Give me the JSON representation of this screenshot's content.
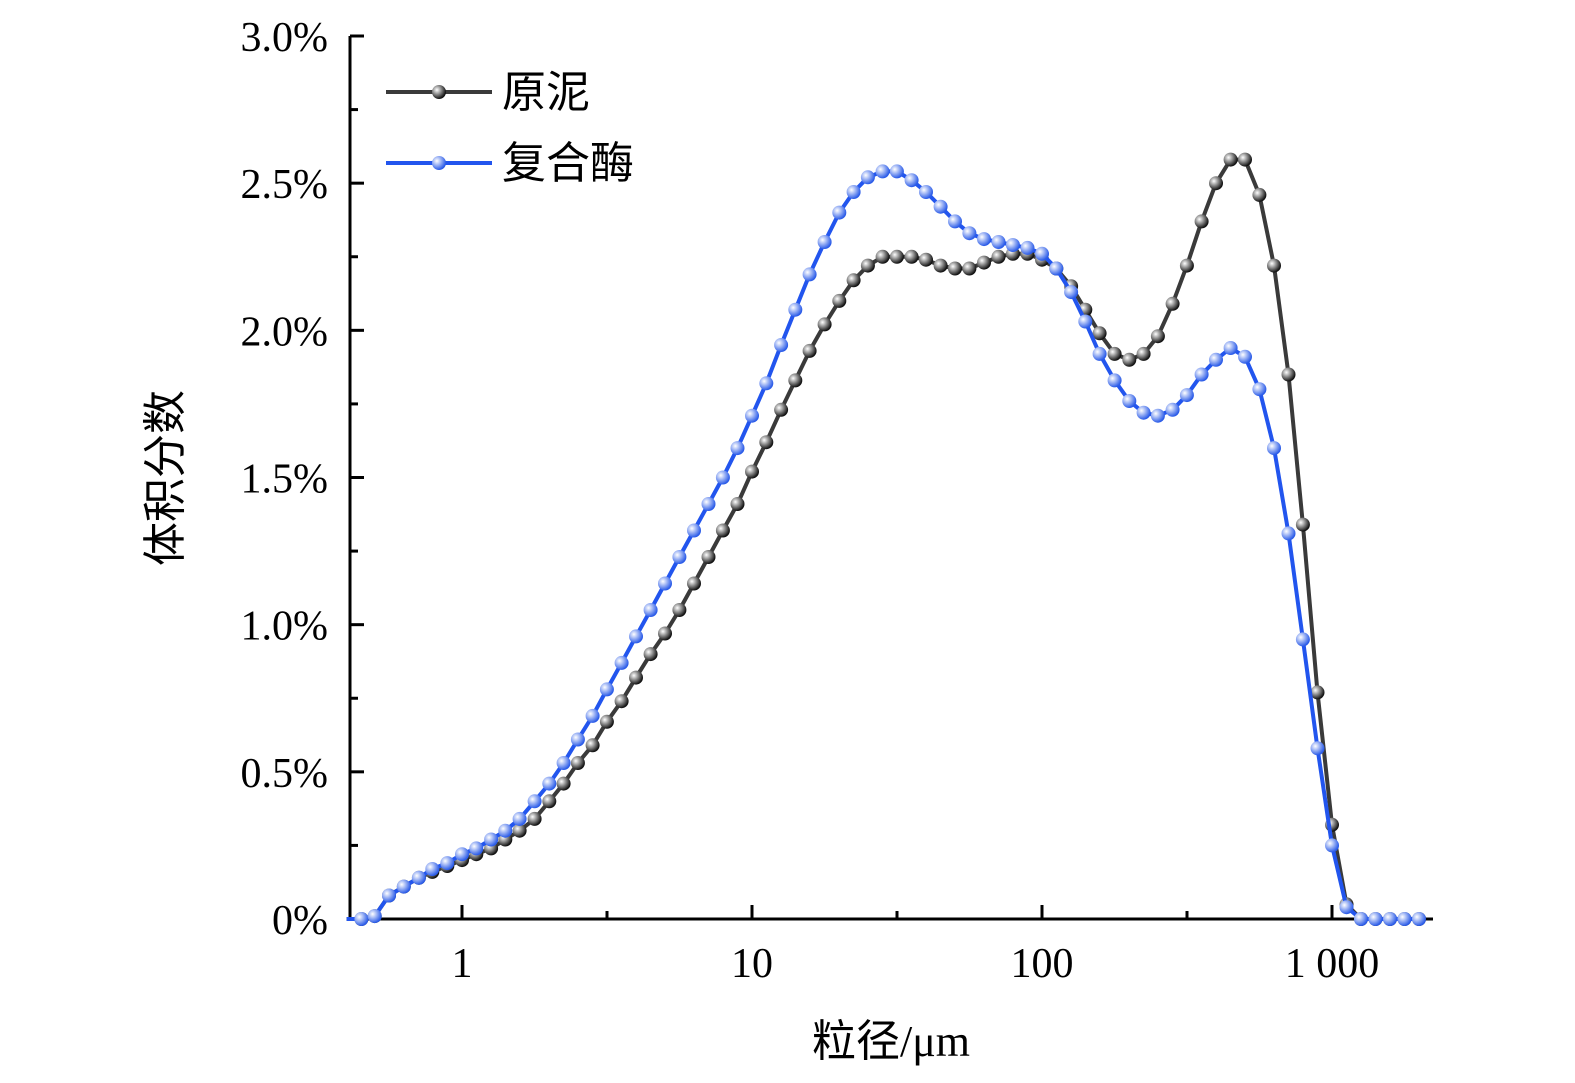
{
  "chart_data": {
    "type": "line",
    "xlabel": "粒径/μm",
    "ylabel": "体积分数",
    "xscale": "log",
    "xlim": [
      0.4,
      2000
    ],
    "ylim": [
      0,
      3.0
    ],
    "x_ticks": [
      {
        "value": 1,
        "label": "1"
      },
      {
        "value": 10,
        "label": "10"
      },
      {
        "value": 100,
        "label": "100"
      },
      {
        "value": 1000,
        "label": "1 000"
      }
    ],
    "y_ticks": [
      {
        "value": 0,
        "label": "0%"
      },
      {
        "value": 0.5,
        "label": "0.5%"
      },
      {
        "value": 1.0,
        "label": "1.0%"
      },
      {
        "value": 1.5,
        "label": "1.5%"
      },
      {
        "value": 2.0,
        "label": "2.0%"
      },
      {
        "value": 2.5,
        "label": "2.5%"
      },
      {
        "value": 3.0,
        "label": "3.0%"
      }
    ],
    "legend_position": "top-left",
    "grid": false,
    "series": [
      {
        "name": "原泥",
        "color": "#3a3a3a",
        "marker_color": "#111111",
        "x": [
          0.4,
          0.45,
          0.5,
          0.56,
          0.63,
          0.71,
          0.79,
          0.89,
          1.0,
          1.12,
          1.26,
          1.41,
          1.58,
          1.78,
          2.0,
          2.24,
          2.51,
          2.82,
          3.16,
          3.55,
          3.98,
          4.47,
          5.01,
          5.62,
          6.31,
          7.08,
          7.94,
          8.91,
          10.0,
          11.2,
          12.6,
          14.1,
          15.8,
          17.8,
          20.0,
          22.4,
          25.1,
          28.2,
          31.6,
          35.5,
          39.8,
          44.7,
          50.1,
          56.2,
          63.1,
          70.8,
          79.4,
          89.1,
          100,
          112,
          126,
          141,
          158,
          178,
          200,
          224,
          251,
          282,
          316,
          355,
          398,
          447,
          501,
          562,
          631,
          708,
          794,
          891,
          1000,
          1122,
          1259,
          1413,
          1585,
          1778,
          1995
        ],
        "values": [
          0,
          0,
          0.01,
          0.08,
          0.11,
          0.14,
          0.16,
          0.18,
          0.2,
          0.22,
          0.24,
          0.27,
          0.3,
          0.34,
          0.4,
          0.46,
          0.53,
          0.59,
          0.67,
          0.74,
          0.82,
          0.9,
          0.97,
          1.05,
          1.14,
          1.23,
          1.32,
          1.41,
          1.52,
          1.62,
          1.73,
          1.83,
          1.93,
          2.02,
          2.1,
          2.17,
          2.22,
          2.25,
          2.25,
          2.25,
          2.24,
          2.22,
          2.21,
          2.21,
          2.23,
          2.25,
          2.26,
          2.26,
          2.24,
          2.21,
          2.15,
          2.07,
          1.99,
          1.92,
          1.9,
          1.92,
          1.98,
          2.09,
          2.22,
          2.37,
          2.5,
          2.58,
          2.58,
          2.46,
          2.22,
          1.85,
          1.34,
          0.77,
          0.32,
          0.05,
          0,
          0,
          0,
          0,
          0
        ]
      },
      {
        "name": "复合酶",
        "color": "#2255ee",
        "marker_color": "#2a5be8",
        "x": [
          0.4,
          0.45,
          0.5,
          0.56,
          0.63,
          0.71,
          0.79,
          0.89,
          1.0,
          1.12,
          1.26,
          1.41,
          1.58,
          1.78,
          2.0,
          2.24,
          2.51,
          2.82,
          3.16,
          3.55,
          3.98,
          4.47,
          5.01,
          5.62,
          6.31,
          7.08,
          7.94,
          8.91,
          10.0,
          11.2,
          12.6,
          14.1,
          15.8,
          17.8,
          20.0,
          22.4,
          25.1,
          28.2,
          31.6,
          35.5,
          39.8,
          44.7,
          50.1,
          56.2,
          63.1,
          70.8,
          79.4,
          89.1,
          100,
          112,
          126,
          141,
          158,
          178,
          200,
          224,
          251,
          282,
          316,
          355,
          398,
          447,
          501,
          562,
          631,
          708,
          794,
          891,
          1000,
          1122,
          1259,
          1413,
          1585,
          1778,
          1995
        ],
        "values": [
          0,
          0,
          0.01,
          0.08,
          0.11,
          0.14,
          0.17,
          0.19,
          0.22,
          0.24,
          0.27,
          0.3,
          0.34,
          0.4,
          0.46,
          0.53,
          0.61,
          0.69,
          0.78,
          0.87,
          0.96,
          1.05,
          1.14,
          1.23,
          1.32,
          1.41,
          1.5,
          1.6,
          1.71,
          1.82,
          1.95,
          2.07,
          2.19,
          2.3,
          2.4,
          2.47,
          2.52,
          2.54,
          2.54,
          2.51,
          2.47,
          2.42,
          2.37,
          2.33,
          2.31,
          2.3,
          2.29,
          2.28,
          2.26,
          2.21,
          2.13,
          2.03,
          1.92,
          1.83,
          1.76,
          1.72,
          1.71,
          1.73,
          1.78,
          1.85,
          1.9,
          1.94,
          1.91,
          1.8,
          1.6,
          1.31,
          0.95,
          0.58,
          0.25,
          0.04,
          0,
          0,
          0,
          0,
          0
        ]
      }
    ]
  }
}
